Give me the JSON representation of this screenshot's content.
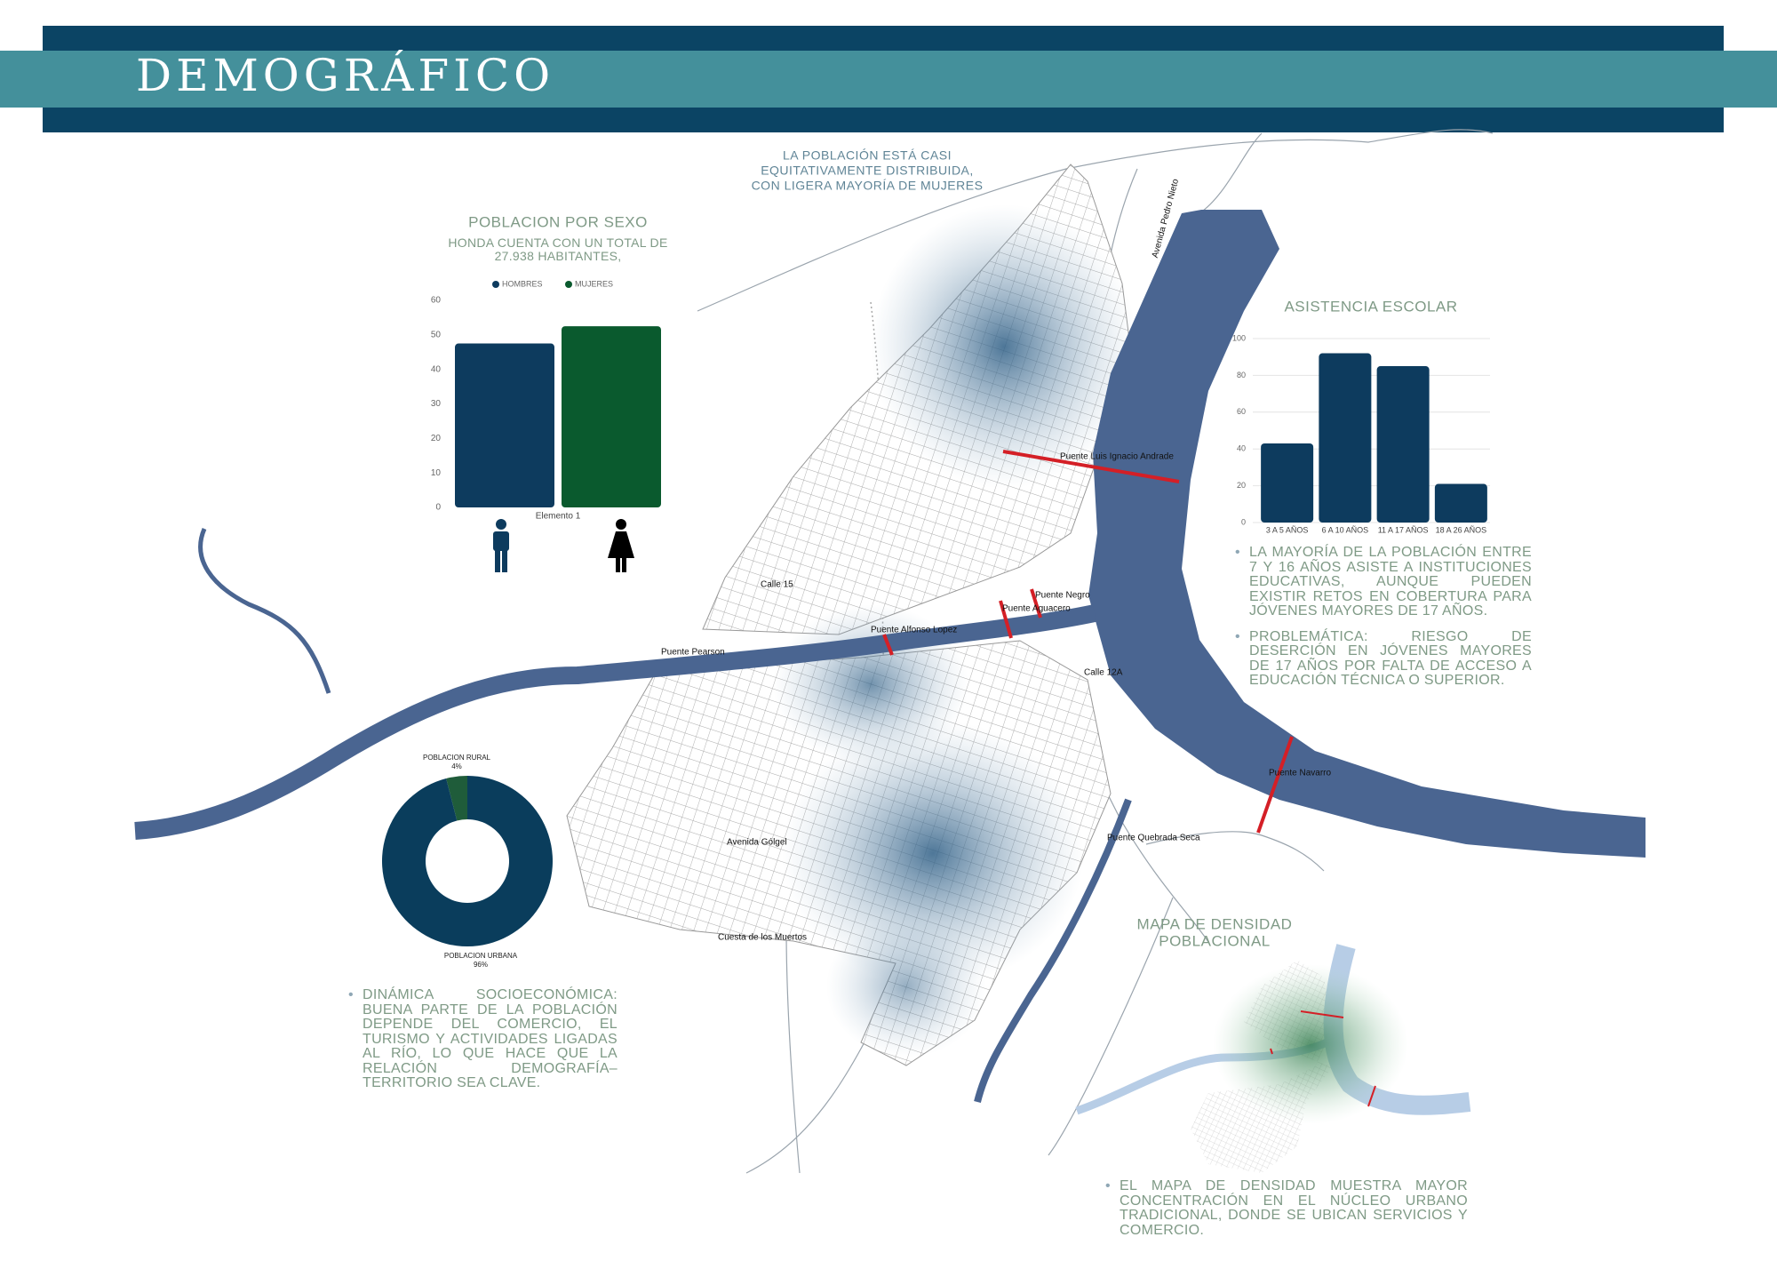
{
  "header": {
    "title": "DEMOGRÁFICO"
  },
  "annotation": [
    "LA POBLACIÓN ESTÁ CASI",
    "EQUITATIVAMENTE DISTRIBUIDA,",
    "CON LIGERA MAYORÍA DE MUJERES"
  ],
  "chart_data": [
    {
      "type": "bar",
      "title": "POBLACION POR SEXO",
      "subtitle": "HONDA CUENTA CON UN TOTAL DE 27.938 HABITANTES,",
      "categories": [
        "Elemento 1"
      ],
      "series": [
        {
          "name": "HOMBRES",
          "color": "#0d3b5e",
          "values": [
            47.5
          ]
        },
        {
          "name": "MUJERES",
          "color": "#0a5a2e",
          "values": [
            52.5
          ]
        }
      ],
      "ylim": [
        0,
        60
      ],
      "yticks": [
        0,
        10,
        20,
        30,
        40,
        50,
        60
      ],
      "grid": false
    },
    {
      "type": "bar",
      "title": "ASISTENCIA ESCOLAR",
      "categories": [
        "3 A 5 AÑOS",
        "6 A 10 AÑOS",
        "11 A 17 AÑOS",
        "18 A 26 AÑOS"
      ],
      "series": [
        {
          "color": "#0d3b5e",
          "values": [
            43,
            92,
            85,
            21
          ]
        }
      ],
      "ylim": [
        0,
        100
      ],
      "yticks": [
        0,
        20,
        40,
        60,
        80,
        100
      ],
      "grid": true
    },
    {
      "type": "pie",
      "categories": [
        "POBLACION RURAL",
        "POBLACION URBANA"
      ],
      "values": [
        4,
        96
      ],
      "value_labels": [
        "4%",
        "96%"
      ],
      "colors": [
        "#1f5c3a",
        "#0a3d5c"
      ],
      "donut": true
    }
  ],
  "bullets": {
    "school": [
      "LA MAYORÍA DE LA POBLACIÓN ENTRE 7 Y 16 AÑOS ASISTE A INSTITUCIONES EDUCATIVAS, AUNQUE PUEDEN EXISTIR RETOS EN COBERTURA PARA JÓVENES MAYORES DE 17 AÑOS.",
      "PROBLEMÁTICA: RIESGO DE DESERCIÓN EN JÓVENES MAYORES DE 17 AÑOS POR FALTA DE ACCESO A EDUCACIÓN TÉCNICA O SUPERIOR."
    ],
    "socio": "DINÁMICA SOCIOECONÓMICA: BUENA PARTE DE LA POBLACIÓN DEPENDE DEL COMERCIO, EL TURISMO Y ACTIVIDADES LIGADAS AL RÍO, LO QUE HACE QUE LA RELACIÓN DEMOGRAFÍA–TERRITORIO SEA CLAVE.",
    "density": "EL MAPA DE DENSIDAD MUESTRA MAYOR CONCENTRACIÓN EN EL NÚCLEO URBANO TRADICIONAL, DONDE SE UBICAN SERVICIOS Y COMERCIO."
  },
  "density_map": {
    "title": [
      "MAPA DE DENSIDAD",
      "POBLACIONAL"
    ]
  },
  "map_labels": [
    "Puente Luis Ignacio Andrade",
    "Puente Negro",
    "Puente Aguacero",
    "Puente Alfonso Lopez",
    "Puente Pearson",
    "Puente Navarro",
    "Puente Quebrada Seca",
    "Calle 15",
    "Avenida Gólgel",
    "Cuesta de los Muertos",
    "Calle 12A",
    "Avenida Pedro Nieto"
  ]
}
